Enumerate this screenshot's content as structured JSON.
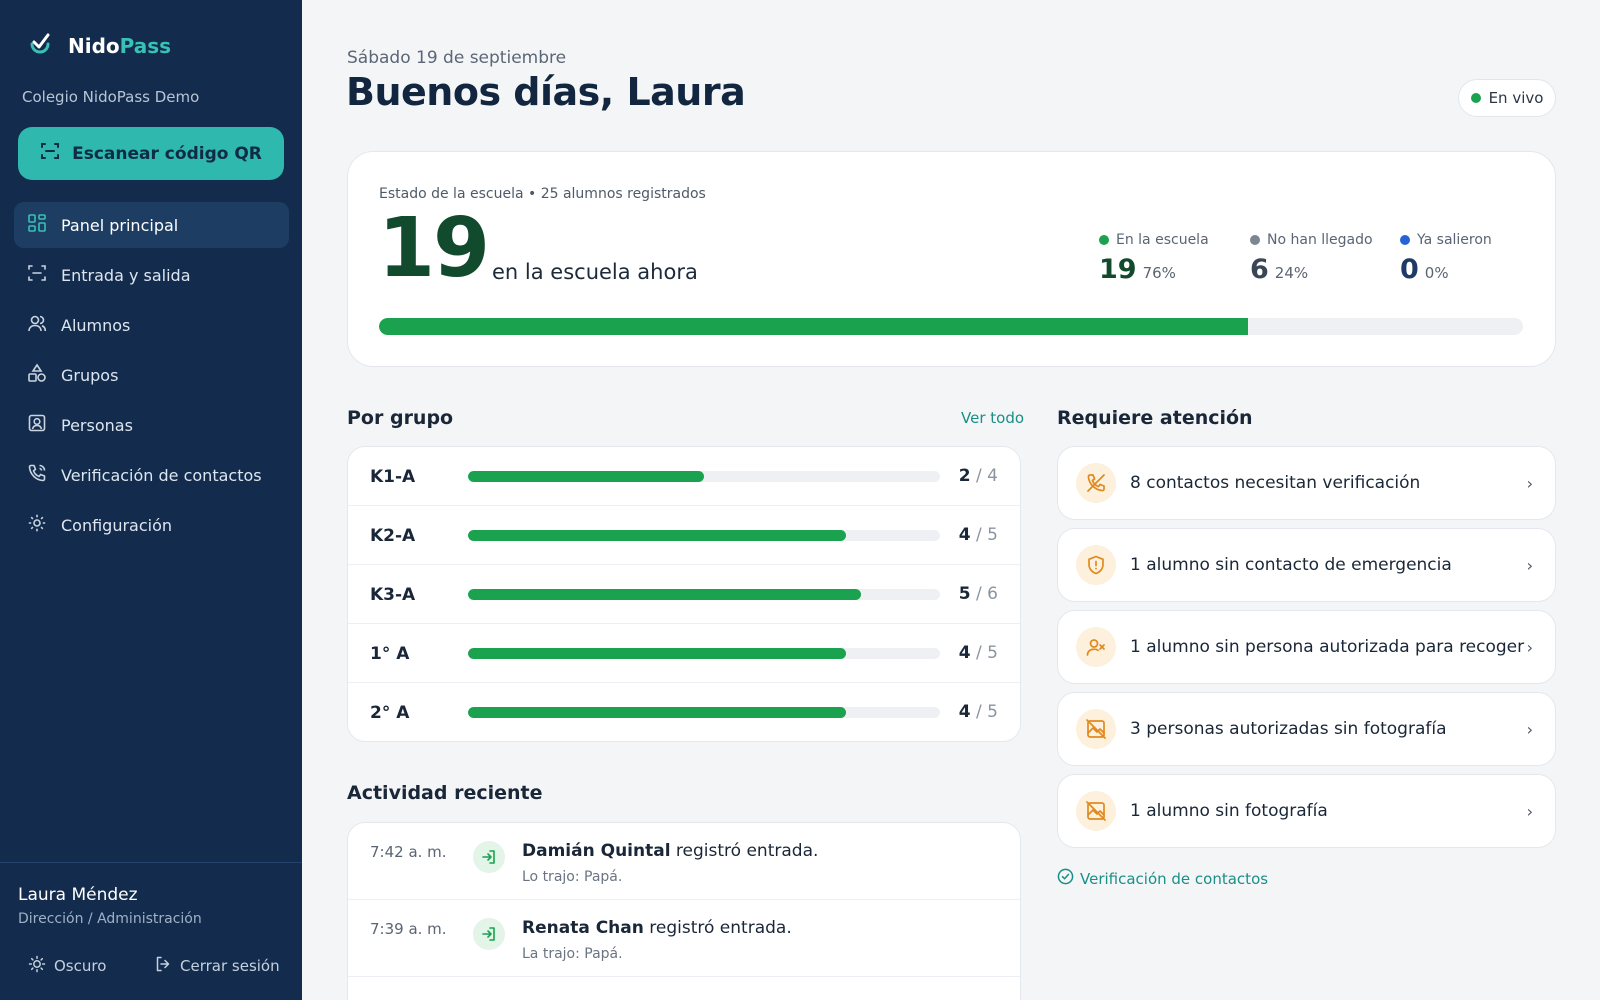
{
  "app": {
    "brand_part1": "Nido",
    "brand_part2": "Pass",
    "school_name": "Colegio NidoPass Demo",
    "scan_button": "Escanear código QR",
    "icon": "check-logo-icon"
  },
  "sidebar": {
    "items": [
      {
        "label": "Panel principal",
        "icon": "grid-icon",
        "active": true
      },
      {
        "label": "Entrada y salida",
        "icon": "scan-icon",
        "active": false
      },
      {
        "label": "Alumnos",
        "icon": "users-icon",
        "active": false
      },
      {
        "label": "Grupos",
        "icon": "shapes-icon",
        "active": false
      },
      {
        "label": "Personas",
        "icon": "contact-card-icon",
        "active": false
      },
      {
        "label": "Verificación de contactos",
        "icon": "phone-icon",
        "active": false
      },
      {
        "label": "Configuración",
        "icon": "gear-icon",
        "active": false
      }
    ],
    "user_name": "Laura Méndez",
    "user_role": "Dirección / Administración",
    "theme_toggle": "Oscuro",
    "logout": "Cerrar sesión"
  },
  "header": {
    "date": "Sábado 19 de septiembre",
    "greeting": "Buenos días, Laura",
    "live_label": "En vivo",
    "live_color": "#1aa24f"
  },
  "status": {
    "title": "Estado de la escuela • 25 alumnos registrados",
    "in_school_count": "19",
    "in_school_label": "en la escuela ahora",
    "progress_fraction": 0.76,
    "stats": [
      {
        "label": "En la escuela",
        "value": "19",
        "pct": "76%",
        "color": "#1aa24f",
        "num_color": "#114a2c"
      },
      {
        "label": "No han llegado",
        "value": "6",
        "pct": "24%",
        "color": "#7c8592",
        "num_color": "#3a4656"
      },
      {
        "label": "Ya salieron",
        "value": "0",
        "pct": "0%",
        "color": "#2563d6",
        "num_color": "#1f3a66"
      }
    ]
  },
  "groups": {
    "title": "Por grupo",
    "see_all": "Ver todo",
    "rows": [
      {
        "name": "K1-A",
        "present": "2",
        "total": "4",
        "fraction": 0.5
      },
      {
        "name": "K2-A",
        "present": "4",
        "total": "5",
        "fraction": 0.8
      },
      {
        "name": "K3-A",
        "present": "5",
        "total": "6",
        "fraction": 0.833
      },
      {
        "name": "1° A",
        "present": "4",
        "total": "5",
        "fraction": 0.8
      },
      {
        "name": "2° A",
        "present": "4",
        "total": "5",
        "fraction": 0.8
      }
    ]
  },
  "attention": {
    "title": "Requiere atención",
    "items": [
      {
        "text": "8 contactos necesitan verificación",
        "icon": "phone-off-icon"
      },
      {
        "text": "1 alumno sin contacto de emergencia",
        "icon": "shield-alert-icon"
      },
      {
        "text": "1 alumno sin persona autorizada para recoger",
        "icon": "user-x-icon"
      },
      {
        "text": "3 personas autorizadas sin fotografía",
        "icon": "image-off-icon"
      },
      {
        "text": "1 alumno sin fotografía",
        "icon": "image-off-icon"
      }
    ],
    "footer_link": "Verificación de contactos"
  },
  "activity": {
    "title": "Actividad reciente",
    "items": [
      {
        "time": "7:42 a. m.",
        "name": "Damián Quintal",
        "action": " registró entrada.",
        "detail": "Lo trajo: Papá.",
        "icon": "login-icon"
      },
      {
        "time": "7:39 a. m.",
        "name": "Renata Chan",
        "action": " registró entrada.",
        "detail": "La trajo: Papá.",
        "icon": "login-icon"
      }
    ]
  }
}
